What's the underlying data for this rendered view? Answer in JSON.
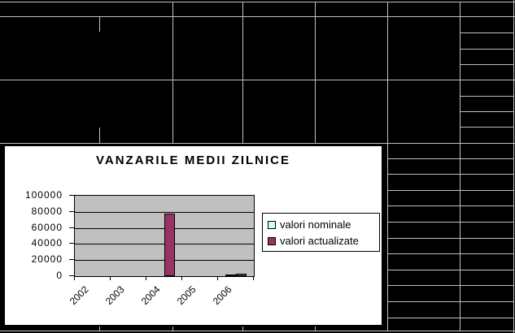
{
  "spreadsheet": {
    "cell_fill": "#000000",
    "gridline_color": "#c0c0c0"
  },
  "chart": {
    "title": "VANZARILE MEDII ZILNICE",
    "background": "#ffffff",
    "plot_background": "#c0c0c0"
  },
  "chart_data": {
    "type": "bar",
    "title": "VANZARILE MEDII ZILNICE",
    "categories": [
      "2002",
      "2003",
      "2004",
      "2005",
      "2006"
    ],
    "series": [
      {
        "name": "valori nominale",
        "color": "#ccffff",
        "values": [
          0,
          0,
          0,
          0,
          1000
        ]
      },
      {
        "name": "valori actualizate",
        "color": "#993366",
        "values": [
          0,
          0,
          78000,
          0,
          3000
        ]
      }
    ],
    "xlabel": "",
    "ylabel": "",
    "ylim": [
      0,
      100000
    ],
    "ytick_step": 20000,
    "ytick_labels": [
      "0",
      "20000",
      "40000",
      "60000",
      "80000",
      "100000"
    ],
    "grid": "horizontal",
    "legend_position": "right",
    "legend_entries": [
      "valori nominale",
      "valori actualizate"
    ]
  }
}
